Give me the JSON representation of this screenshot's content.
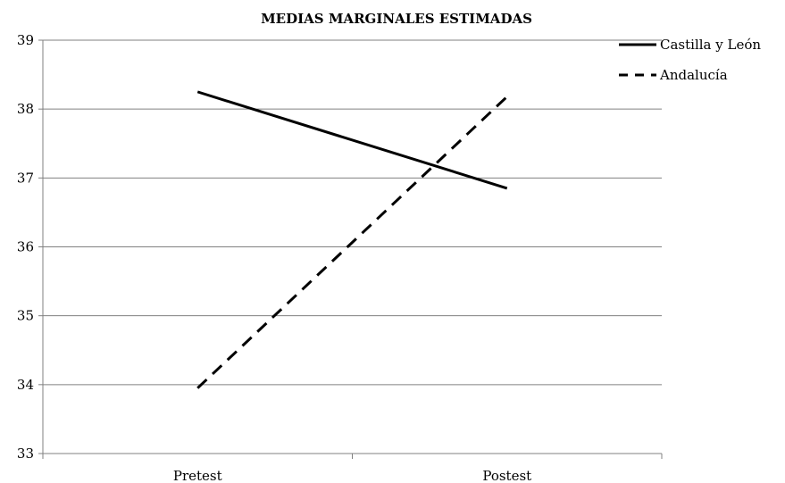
{
  "chart_data": {
    "type": "line",
    "title": "MEDIAS MARGINALES ESTIMADAS",
    "xlabel": "",
    "ylabel": "",
    "categories": [
      "Pretest",
      "Postest"
    ],
    "ylim": [
      33,
      39
    ],
    "yticks": [
      33,
      34,
      35,
      36,
      37,
      38,
      39
    ],
    "grid": true,
    "legend_position": "right",
    "series": [
      {
        "name": "Castilla y León",
        "values": [
          38.25,
          36.85
        ],
        "style": "solid",
        "color": "#000000"
      },
      {
        "name": "Andalucía",
        "values": [
          33.95,
          38.18
        ],
        "style": "dashed",
        "color": "#000000"
      }
    ]
  }
}
